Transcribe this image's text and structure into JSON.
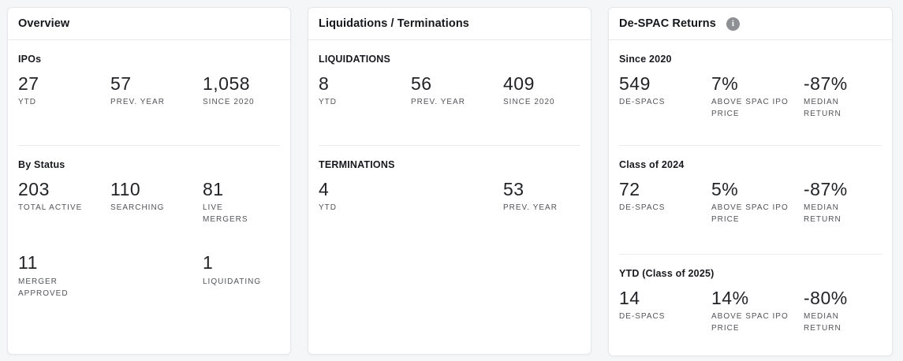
{
  "cards": [
    {
      "title": "Overview",
      "sections": [
        {
          "label": "IPOs",
          "stats": [
            {
              "value": "27",
              "label": "YTD"
            },
            {
              "value": "57",
              "label": "PREV. YEAR"
            },
            {
              "value": "1,058",
              "label": "SINCE 2020"
            }
          ]
        },
        {
          "label": "By Status",
          "stats": [
            {
              "value": "203",
              "label": "TOTAL ACTIVE"
            },
            {
              "value": "110",
              "label": "SEARCHING"
            },
            {
              "value": "81",
              "label": "LIVE MERGERS"
            },
            {
              "value": "11",
              "label": "MERGER APPROVED"
            },
            {
              "value": "",
              "label": ""
            },
            {
              "value": "1",
              "label": "LIQUIDATING"
            }
          ]
        }
      ]
    },
    {
      "title": "Liquidations / Terminations",
      "sections": [
        {
          "label": "LIQUIDATIONS",
          "stats": [
            {
              "value": "8",
              "label": "YTD"
            },
            {
              "value": "56",
              "label": "PREV. YEAR"
            },
            {
              "value": "409",
              "label": "SINCE 2020"
            }
          ]
        },
        {
          "label": "TERMINATIONS",
          "stats": [
            {
              "value": "4",
              "label": "YTD"
            },
            {
              "value": "",
              "label": ""
            },
            {
              "value": "53",
              "label": "PREV. YEAR"
            }
          ]
        }
      ]
    },
    {
      "title": "De-SPAC Returns",
      "icons": {
        "info_glyph": "i"
      },
      "sections": [
        {
          "label": "Since 2020",
          "stats": [
            {
              "value": "549",
              "label": "DE-SPACS"
            },
            {
              "value": "7%",
              "label": "ABOVE SPAC IPO PRICE"
            },
            {
              "value": "-87%",
              "label": "MEDIAN RETURN"
            }
          ]
        },
        {
          "label": "Class of 2024",
          "stats": [
            {
              "value": "72",
              "label": "DE-SPACS"
            },
            {
              "value": "5%",
              "label": "ABOVE SPAC IPO PRICE"
            },
            {
              "value": "-87%",
              "label": "MEDIAN RETURN"
            }
          ]
        },
        {
          "label": "YTD (Class of 2025)",
          "stats": [
            {
              "value": "14",
              "label": "DE-SPACS"
            },
            {
              "value": "14%",
              "label": "ABOVE SPAC IPO PRICE"
            },
            {
              "value": "-80%",
              "label": "MEDIAN RETURN"
            }
          ]
        }
      ]
    }
  ],
  "colors": {
    "page_bg": "#f5f6f7",
    "card_bg": "#ffffff",
    "card_border": "#e5e7ea",
    "title_text": "#15171c",
    "value_text": "#212327",
    "label_text": "#515459",
    "info_icon_bg": "#8d9094"
  }
}
